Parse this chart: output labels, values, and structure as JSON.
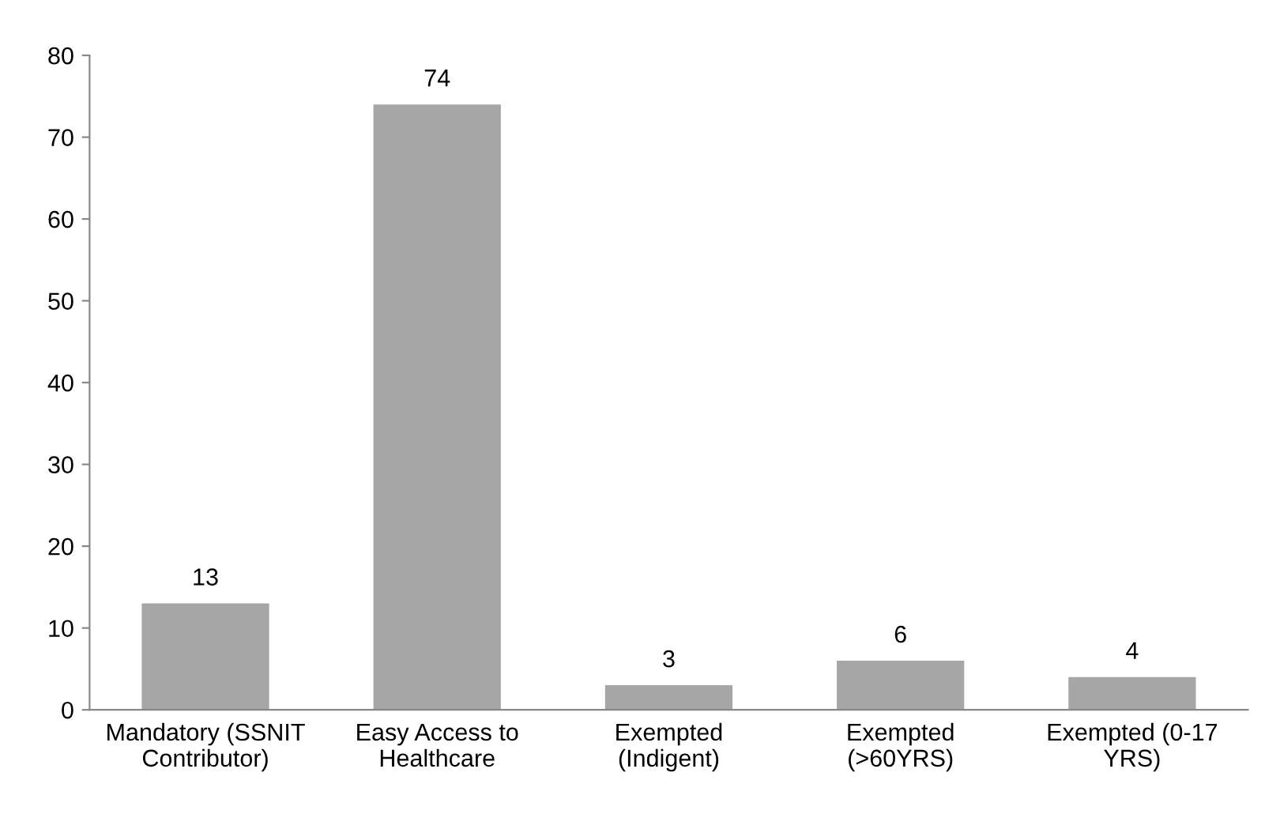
{
  "chart_data": {
    "type": "bar",
    "categories": [
      "Mandatory (SSNIT\nContributor)",
      "Easy Access to\nHealthcare",
      "Exempted\n(Indigent)",
      "Exempted\n(>60YRS)",
      "Exempted (0-17\nYRS)"
    ],
    "values": [
      13,
      74,
      3,
      6,
      4
    ],
    "color": "#a6a6a6",
    "ylim": [
      0,
      80
    ],
    "yticks": [
      0,
      10,
      20,
      30,
      40,
      50,
      60,
      70,
      80
    ],
    "data_labels": true,
    "grid": false,
    "legend": false
  }
}
